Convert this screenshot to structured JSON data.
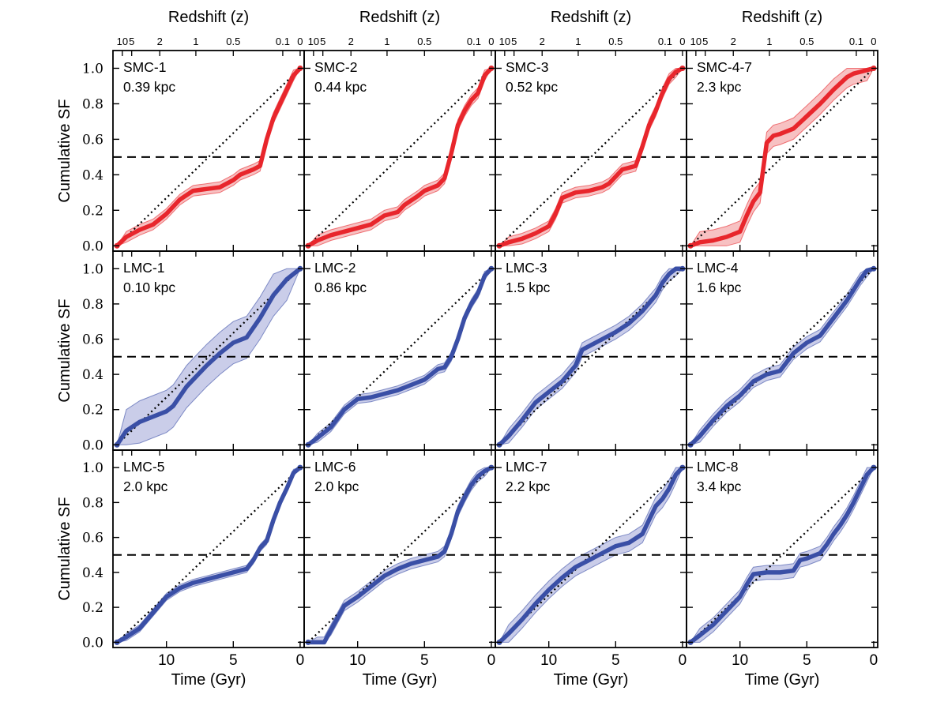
{
  "figure": {
    "top_axis_label": "Redshift (z)",
    "bottom_axis_label": "Time (Gyr)",
    "left_axis_label": "Cumulative SF",
    "colors": {
      "smc": "#e8262c",
      "lmc": "#3a4fa6",
      "smc_band": "#f4a7a8",
      "lmc_band": "#b4b8df"
    }
  },
  "chart_data": {
    "type": "line",
    "layout": {
      "rows": 3,
      "columns": 4
    },
    "x_axis": {
      "label": "Time (Gyr)",
      "lim": [
        14,
        -0.3
      ],
      "ticks": [
        10,
        5,
        0
      ]
    },
    "y_axis": {
      "label": "Cumulative SF",
      "lim": [
        -0.03,
        1.1
      ],
      "ticks": [
        0.0,
        0.2,
        0.4,
        0.6,
        0.8,
        1.0
      ],
      "tick_labels": [
        "0.0",
        "0.2",
        "0.4",
        "0.6",
        "0.8",
        "1.0"
      ]
    },
    "top_axis": {
      "label": "Redshift (z)",
      "ticks": [
        {
          "label": "10",
          "time": 13.3
        },
        {
          "label": "5",
          "time": 12.6
        },
        {
          "label": "2",
          "time": 10.5
        },
        {
          "label": "1",
          "time": 7.8
        },
        {
          "label": "0.5",
          "time": 5.0
        },
        {
          "label": "0.1",
          "time": 1.3
        },
        {
          "label": "0",
          "time": 0
        }
      ]
    },
    "reference_lines": {
      "dashed_y": 0.5,
      "dotted_constant_sfr": [
        [
          13.7,
          0
        ],
        [
          0,
          1
        ]
      ]
    },
    "panels": [
      {
        "region": "SMC-1",
        "distance": "0.39 kpc",
        "color": "red",
        "band": 0.03,
        "x": [
          13.7,
          13.0,
          12.0,
          11.0,
          10.0,
          9.0,
          8.0,
          7.0,
          6.0,
          5.0,
          4.5,
          3.5,
          3.0,
          2.5,
          2.0,
          1.5,
          1.0,
          0.5,
          0.0
        ],
        "y": [
          0.0,
          0.05,
          0.09,
          0.12,
          0.18,
          0.26,
          0.31,
          0.32,
          0.33,
          0.37,
          0.4,
          0.43,
          0.45,
          0.6,
          0.72,
          0.8,
          0.88,
          0.96,
          1.0
        ]
      },
      {
        "region": "SMC-2",
        "distance": "0.44 kpc",
        "color": "red",
        "band": 0.03,
        "x": [
          13.7,
          13.0,
          12.0,
          11.0,
          10.0,
          9.0,
          8.0,
          7.0,
          6.5,
          5.5,
          5.0,
          4.0,
          3.5,
          3.0,
          2.5,
          2.0,
          1.5,
          1.0,
          0.5,
          0.0
        ],
        "y": [
          0.0,
          0.03,
          0.06,
          0.08,
          0.1,
          0.12,
          0.17,
          0.19,
          0.23,
          0.28,
          0.31,
          0.34,
          0.38,
          0.52,
          0.68,
          0.76,
          0.82,
          0.86,
          0.96,
          1.0
        ]
      },
      {
        "region": "SMC-3",
        "distance": "0.52 kpc",
        "color": "red",
        "band": 0.03,
        "x": [
          13.7,
          13.0,
          12.0,
          11.0,
          10.0,
          9.5,
          9.0,
          8.0,
          7.0,
          6.0,
          5.5,
          5.0,
          4.5,
          3.5,
          3.0,
          2.5,
          2.0,
          1.5,
          1.0,
          0.5,
          0.0
        ],
        "y": [
          0.0,
          0.02,
          0.04,
          0.07,
          0.11,
          0.18,
          0.27,
          0.3,
          0.31,
          0.33,
          0.35,
          0.39,
          0.43,
          0.45,
          0.56,
          0.68,
          0.76,
          0.86,
          0.94,
          0.98,
          1.0
        ]
      },
      {
        "region": "SMC-4-7",
        "distance": "2.3 kpc",
        "color": "red",
        "band": 0.06,
        "x": [
          13.7,
          13.0,
          12.0,
          11.0,
          10.0,
          9.5,
          9.0,
          8.5,
          8.0,
          7.5,
          7.0,
          6.0,
          5.0,
          4.0,
          3.0,
          2.0,
          1.5,
          1.0,
          0.5,
          0.0
        ],
        "y": [
          0.0,
          0.02,
          0.03,
          0.05,
          0.08,
          0.17,
          0.25,
          0.3,
          0.58,
          0.62,
          0.63,
          0.66,
          0.73,
          0.8,
          0.88,
          0.95,
          0.97,
          0.98,
          0.99,
          1.0
        ]
      },
      {
        "region": "LMC-1",
        "distance": "0.10 kpc",
        "color": "blue",
        "band": 0.12,
        "x": [
          13.7,
          13.0,
          12.0,
          11.0,
          10.0,
          9.5,
          8.5,
          8.0,
          7.0,
          6.0,
          5.0,
          4.0,
          3.0,
          2.0,
          1.0,
          0.0
        ],
        "y": [
          0.0,
          0.08,
          0.13,
          0.16,
          0.19,
          0.22,
          0.33,
          0.37,
          0.45,
          0.52,
          0.58,
          0.61,
          0.72,
          0.85,
          0.94,
          1.0
        ]
      },
      {
        "region": "LMC-2",
        "distance": "0.86 kpc",
        "color": "blue",
        "band": 0.025,
        "x": [
          13.7,
          13.0,
          12.0,
          11.0,
          10.0,
          9.0,
          8.0,
          7.0,
          6.0,
          5.0,
          4.5,
          4.0,
          3.5,
          3.0,
          2.5,
          2.0,
          1.5,
          1.0,
          0.5,
          0.0
        ],
        "y": [
          0.0,
          0.04,
          0.1,
          0.2,
          0.26,
          0.27,
          0.29,
          0.31,
          0.34,
          0.37,
          0.4,
          0.43,
          0.44,
          0.5,
          0.6,
          0.72,
          0.8,
          0.86,
          0.96,
          1.0
        ]
      },
      {
        "region": "LMC-3",
        "distance": "1.5 kpc",
        "color": "blue",
        "band": 0.04,
        "x": [
          13.7,
          13.0,
          12.0,
          11.0,
          10.0,
          9.0,
          8.0,
          7.5,
          7.0,
          6.0,
          5.0,
          4.0,
          3.0,
          2.0,
          1.5,
          1.0,
          0.5,
          0.0
        ],
        "y": [
          0.0,
          0.05,
          0.14,
          0.24,
          0.3,
          0.36,
          0.45,
          0.54,
          0.56,
          0.6,
          0.64,
          0.69,
          0.76,
          0.85,
          0.92,
          0.97,
          1.0,
          1.0
        ]
      },
      {
        "region": "LMC-4",
        "distance": "1.6 kpc",
        "color": "blue",
        "band": 0.035,
        "x": [
          13.7,
          13.0,
          12.0,
          11.0,
          10.0,
          9.5,
          9.0,
          8.5,
          8.0,
          7.0,
          6.0,
          5.0,
          4.0,
          3.0,
          2.0,
          1.0,
          0.5,
          0.0
        ],
        "y": [
          0.0,
          0.05,
          0.14,
          0.22,
          0.28,
          0.32,
          0.36,
          0.38,
          0.4,
          0.42,
          0.52,
          0.58,
          0.62,
          0.72,
          0.82,
          0.94,
          0.99,
          1.0
        ]
      },
      {
        "region": "LMC-5",
        "distance": "2.0 kpc",
        "color": "blue",
        "band": 0.02,
        "x": [
          13.7,
          13.0,
          12.0,
          11.0,
          10.0,
          9.0,
          8.0,
          7.0,
          6.0,
          5.0,
          4.0,
          3.5,
          3.0,
          2.5,
          2.0,
          1.5,
          1.0,
          0.5,
          0.0
        ],
        "y": [
          0.0,
          0.03,
          0.08,
          0.17,
          0.26,
          0.31,
          0.34,
          0.36,
          0.38,
          0.4,
          0.42,
          0.47,
          0.54,
          0.58,
          0.7,
          0.8,
          0.88,
          0.97,
          1.0
        ]
      },
      {
        "region": "LMC-6",
        "distance": "2.0 kpc",
        "color": "blue",
        "band": 0.03,
        "x": [
          13.7,
          13.0,
          12.5,
          12.0,
          11.0,
          10.0,
          9.0,
          8.0,
          7.0,
          6.0,
          5.0,
          4.0,
          3.5,
          3.0,
          2.5,
          2.0,
          1.5,
          1.0,
          0.5,
          0.0
        ],
        "y": [
          0.0,
          0.0,
          0.0,
          0.07,
          0.21,
          0.26,
          0.32,
          0.38,
          0.42,
          0.45,
          0.47,
          0.49,
          0.52,
          0.62,
          0.75,
          0.83,
          0.9,
          0.95,
          0.98,
          1.0
        ]
      },
      {
        "region": "LMC-7",
        "distance": "2.2 kpc",
        "color": "blue",
        "band": 0.05,
        "x": [
          13.7,
          13.0,
          12.0,
          11.0,
          10.0,
          9.0,
          8.0,
          7.0,
          6.0,
          5.0,
          4.0,
          3.0,
          2.5,
          2.0,
          1.5,
          1.0,
          0.5,
          0.0
        ],
        "y": [
          0.0,
          0.05,
          0.13,
          0.22,
          0.3,
          0.37,
          0.43,
          0.47,
          0.51,
          0.55,
          0.57,
          0.62,
          0.7,
          0.78,
          0.82,
          0.88,
          0.96,
          1.0
        ]
      },
      {
        "region": "LMC-8",
        "distance": "3.4 kpc",
        "color": "blue",
        "band": 0.04,
        "x": [
          13.7,
          13.0,
          12.0,
          11.0,
          10.0,
          9.5,
          9.0,
          8.0,
          7.0,
          6.0,
          5.5,
          5.0,
          4.0,
          3.5,
          3.0,
          2.5,
          2.0,
          1.5,
          1.0,
          0.5,
          0.0
        ],
        "y": [
          0.0,
          0.04,
          0.1,
          0.18,
          0.26,
          0.33,
          0.39,
          0.4,
          0.4,
          0.41,
          0.47,
          0.48,
          0.51,
          0.56,
          0.62,
          0.67,
          0.73,
          0.8,
          0.88,
          0.96,
          1.0
        ]
      }
    ]
  }
}
